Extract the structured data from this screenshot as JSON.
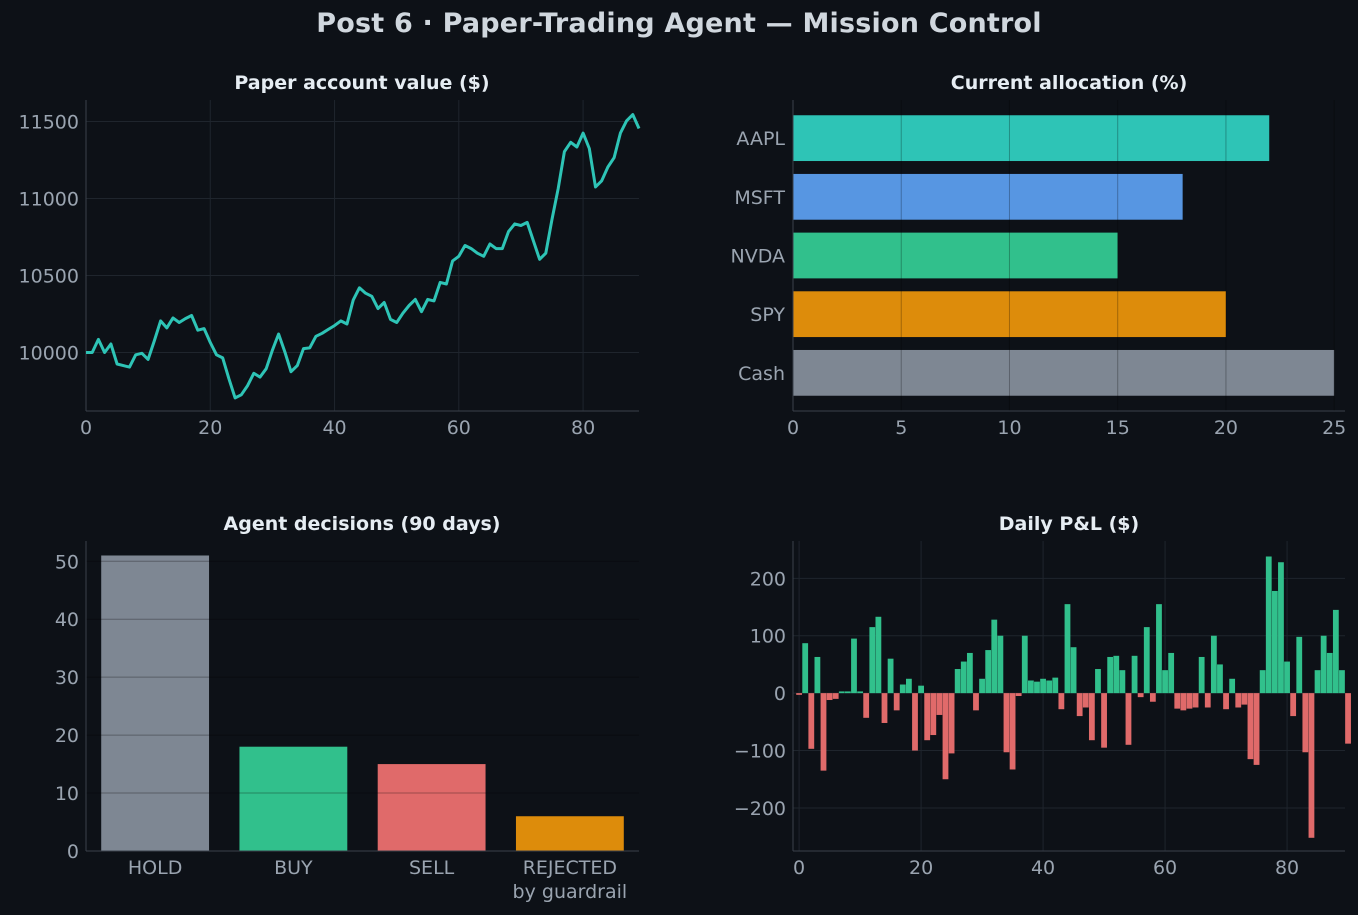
{
  "title": "Post 6 · Paper-Trading Agent — Mission Control",
  "colors": {
    "background": "#0d1117",
    "grid": "#1f252d",
    "axis": "#3a414b",
    "teal": "#2ec4b6",
    "blue": "#5796e2",
    "green": "#31c08c",
    "orange": "#dd8c0b",
    "gray": "#7e8793",
    "red": "#e06a6a"
  },
  "chart_data": [
    {
      "type": "line",
      "title": "Paper account value ($)",
      "xlabel": "",
      "ylabel": "",
      "xlim": [
        0,
        89
      ],
      "ylim": [
        9620,
        11640
      ],
      "x_ticks": [
        0,
        20,
        40,
        60,
        80
      ],
      "y_ticks": [
        10000,
        10500,
        11000,
        11500
      ],
      "grid": true,
      "series": [
        {
          "color": "#2ec4b6",
          "values": [
            10000,
            10000,
            10085,
            10000,
            10055,
            9925,
            9915,
            9905,
            9985,
            9995,
            9955,
            10075,
            10205,
            10160,
            10225,
            10195,
            10220,
            10240,
            10145,
            10155,
            10065,
            9985,
            9965,
            9830,
            9705,
            9725,
            9785,
            9865,
            9840,
            9895,
            10015,
            10120,
            10005,
            9875,
            9915,
            10025,
            10030,
            10105,
            10125,
            10150,
            10175,
            10205,
            10185,
            10340,
            10420,
            10385,
            10365,
            10285,
            10325,
            10215,
            10195,
            10255,
            10305,
            10345,
            10265,
            10345,
            10335,
            10455,
            10445,
            10595,
            10625,
            10695,
            10675,
            10645,
            10625,
            10705,
            10675,
            10675,
            10785,
            10835,
            10825,
            10845,
            10725,
            10605,
            10645,
            10865,
            11065,
            11305,
            11365,
            11335,
            11425,
            11325,
            11075,
            11115,
            11205,
            11265,
            11425,
            11505,
            11545,
            11455
          ]
        }
      ]
    },
    {
      "type": "bar",
      "orientation": "horizontal",
      "title": "Current allocation (%)",
      "xlabel": "",
      "ylabel": "",
      "xlim": [
        0,
        25.5
      ],
      "x_ticks": [
        0,
        5,
        10,
        15,
        20,
        25
      ],
      "grid": true,
      "categories": [
        "AAPL",
        "MSFT",
        "NVDA",
        "SPY",
        "Cash"
      ],
      "values": [
        22,
        18,
        15,
        20,
        25
      ],
      "colors": [
        "#2ec4b6",
        "#5796e2",
        "#31c08c",
        "#dd8c0b",
        "#7e8793"
      ]
    },
    {
      "type": "bar",
      "title": "Agent decisions (90 days)",
      "xlabel": "",
      "ylabel": "",
      "ylim": [
        0,
        53.5
      ],
      "y_ticks": [
        0,
        10,
        20,
        30,
        40,
        50
      ],
      "grid": true,
      "categories": [
        "HOLD",
        "BUY",
        "SELL",
        "REJECTED\nby guardrail"
      ],
      "values": [
        51,
        18,
        15,
        6
      ],
      "colors": [
        "#7e8793",
        "#31c08c",
        "#e06a6a",
        "#dd8c0b"
      ]
    },
    {
      "type": "bar",
      "title": "Daily P&L ($)",
      "xlabel": "",
      "ylabel": "",
      "xlim": [
        -1,
        89.5
      ],
      "ylim": [
        -275,
        265
      ],
      "x_ticks": [
        0,
        20,
        40,
        60,
        80
      ],
      "y_ticks": [
        -200,
        -100,
        0,
        100,
        200
      ],
      "y_tick_labels": [
        "−200",
        "−100",
        "0",
        "100",
        "200"
      ],
      "grid": true,
      "positive_color": "#31c08c",
      "negative_color": "#e06a6a",
      "values": [
        -3,
        87,
        -97,
        63,
        -135,
        -12,
        -10,
        3,
        3,
        95,
        3,
        -43,
        115,
        133,
        -52,
        60,
        -30,
        15,
        25,
        -100,
        13,
        -82,
        -73,
        -38,
        -150,
        -105,
        42,
        55,
        70,
        -30,
        25,
        75,
        128,
        100,
        -103,
        -133,
        -5,
        100,
        22,
        20,
        25,
        22,
        27,
        -28,
        155,
        80,
        -40,
        -25,
        -82,
        42,
        -95,
        63,
        65,
        40,
        -90,
        65,
        -7,
        115,
        -15,
        155,
        40,
        70,
        -27,
        -30,
        -27,
        -25,
        63,
        -25,
        100,
        50,
        -28,
        25,
        -25,
        -20,
        -115,
        -125,
        40,
        238,
        178,
        228,
        55,
        -40,
        98,
        -103,
        -252,
        40,
        100,
        70,
        145,
        40,
        -88
      ]
    }
  ]
}
